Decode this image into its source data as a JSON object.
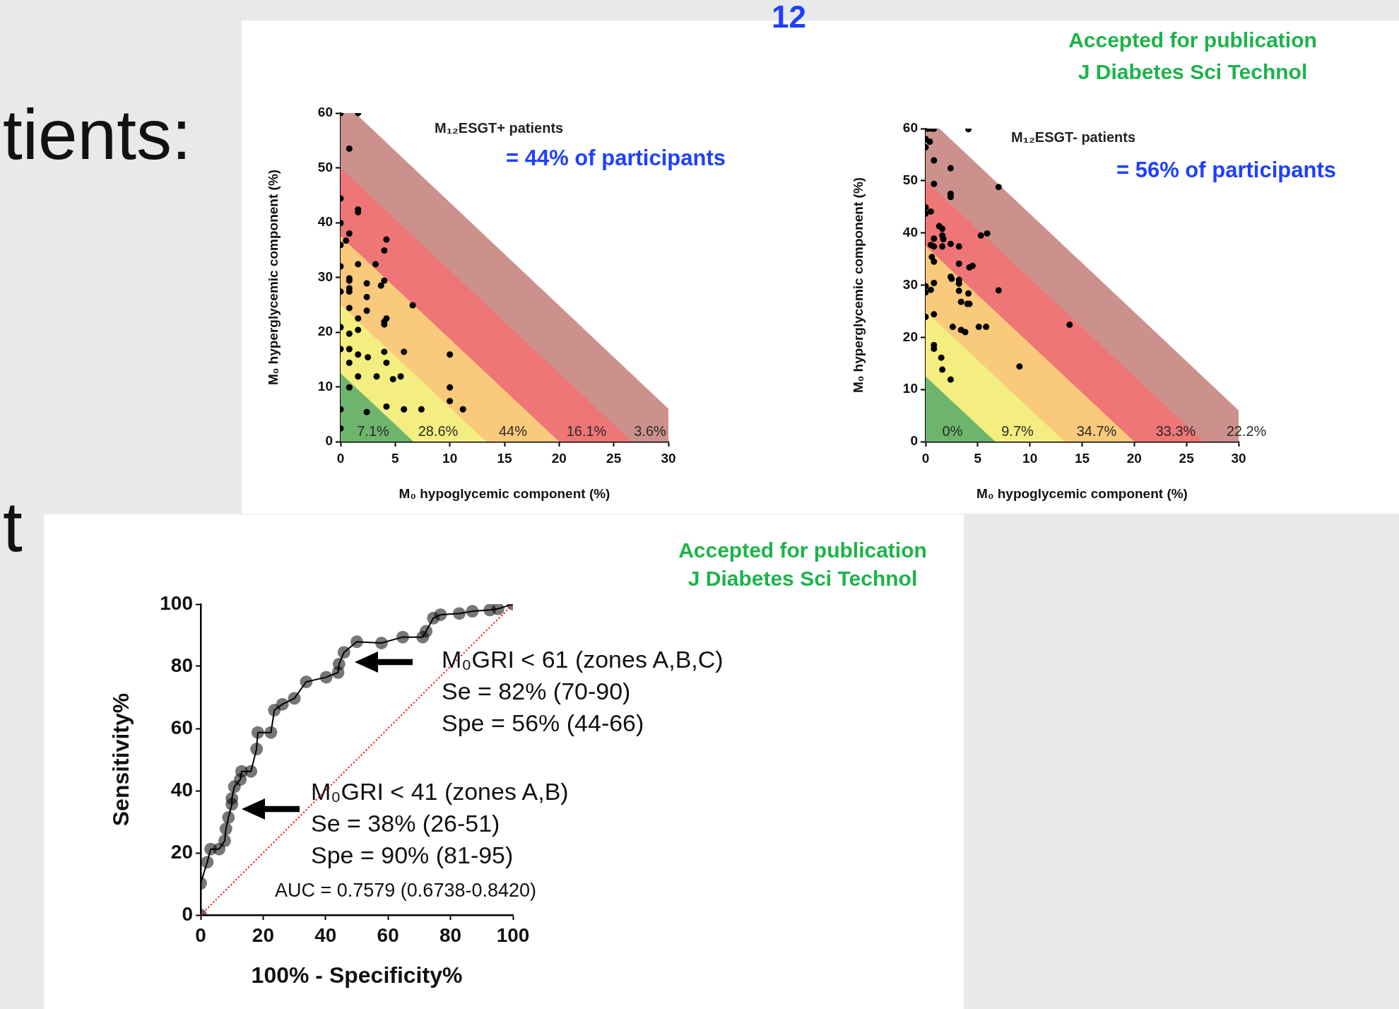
{
  "chart_data": [
    {
      "type": "scatter",
      "title": "M₁₂ESGT+ patients",
      "subtitle": "= 44% of participants",
      "xlabel": "M₀ hypoglycemic component (%)",
      "ylabel": "M₀ hyperglycemic component (%)",
      "xlim": [
        0,
        30
      ],
      "ylim": [
        0,
        60
      ],
      "xticks": [
        0,
        5,
        10,
        15,
        20,
        25,
        30
      ],
      "yticks": [
        0,
        10,
        20,
        30,
        40,
        50,
        60
      ],
      "annotations": [
        "7.1%",
        "28.6%",
        "44%",
        "16.1%",
        "3.6%"
      ],
      "series": [
        {
          "type": "area",
          "color": "#6db56d",
          "x": [
            0,
            6.67,
            30
          ],
          "values": [
            12.5,
            0,
            0
          ]
        },
        {
          "type": "area",
          "color": "#f3ee7f",
          "x": [
            0,
            13.33,
            30
          ],
          "values": [
            25,
            0,
            0
          ]
        },
        {
          "type": "area",
          "color": "#f9c97c",
          "x": [
            0,
            20,
            30
          ],
          "values": [
            37.5,
            0,
            0
          ]
        },
        {
          "type": "area",
          "color": "#ef7676",
          "x": [
            0,
            26.67,
            30
          ],
          "values": [
            50,
            0,
            0
          ]
        },
        {
          "type": "area",
          "color": "#cc918c",
          "x": [
            0,
            1.33,
            30
          ],
          "values": [
            60,
            60,
            6
          ]
        },
        {
          "marker": "circle",
          "color": "#000000",
          "x": [
            0,
            1.6,
            0.8,
            0,
            1.6,
            1.6,
            0,
            0.8,
            0.5,
            4.2,
            0,
            4,
            1.6,
            3.2,
            0,
            0.8,
            0.8,
            2.4,
            4,
            3.7,
            0.8,
            0.8,
            0,
            2.4,
            6.6,
            0.8,
            2.4,
            1.6,
            4.2,
            4,
            4,
            0,
            1.6,
            0.8,
            0,
            0.8,
            1.6,
            2.5,
            4,
            5.8,
            10,
            0.8,
            4.2,
            1.6,
            3.3,
            4.8,
            5.5,
            0.8,
            10,
            10,
            0,
            4.2,
            5.8,
            7.4,
            11.2,
            2.4,
            0
          ],
          "values": [
            60,
            60,
            53.5,
            44.4,
            42.4,
            41.9,
            39.9,
            38,
            36.7,
            36.9,
            35.9,
            34.9,
            32.4,
            32.4,
            32,
            29.8,
            29.4,
            28.9,
            29.4,
            28.5,
            28,
            27.4,
            27.4,
            26.4,
            24.9,
            24.4,
            23.9,
            22.5,
            22.5,
            21.9,
            21.4,
            20.9,
            20.4,
            19.7,
            16.9,
            16.9,
            15.9,
            15.4,
            16.4,
            16.4,
            15.9,
            14.4,
            14.4,
            11.9,
            11.9,
            11.4,
            11.9,
            9.9,
            9.9,
            7.4,
            5.9,
            6.4,
            5.9,
            5.9,
            5.9,
            5.4,
            2.4
          ]
        }
      ]
    },
    {
      "type": "scatter",
      "title": "M₁₂ESGT- patients",
      "subtitle": "= 56% of participants",
      "xlabel": "M₀ hypoglycemic component (%)",
      "ylabel": "M₀ hyperglycemic component (%)",
      "xlim": [
        0,
        30
      ],
      "ylim": [
        0,
        60
      ],
      "xticks": [
        0,
        5,
        10,
        15,
        20,
        25,
        30
      ],
      "yticks": [
        0,
        10,
        20,
        30,
        40,
        50,
        60
      ],
      "annotations": [
        "Accepted for publication",
        "J Diabetes Sci Technol",
        "0%",
        "9.7%",
        "34.7%",
        "33.3%",
        "22.2%"
      ],
      "series": [
        {
          "type": "area",
          "color": "#6db56d",
          "x": [
            0,
            6.67,
            30
          ],
          "values": [
            12.5,
            0,
            0
          ]
        },
        {
          "type": "area",
          "color": "#f3ee7f",
          "x": [
            0,
            13.33,
            30
          ],
          "values": [
            25,
            0,
            0
          ]
        },
        {
          "type": "area",
          "color": "#f9c97c",
          "x": [
            0,
            20,
            30
          ],
          "values": [
            37.5,
            0,
            0
          ]
        },
        {
          "type": "area",
          "color": "#ef7676",
          "x": [
            0,
            26.67,
            30
          ],
          "values": [
            50,
            0,
            0
          ]
        },
        {
          "type": "area",
          "color": "#cc918c",
          "x": [
            0,
            1.33,
            30
          ],
          "values": [
            60,
            60,
            6
          ]
        },
        {
          "marker": "circle",
          "color": "#000000",
          "x": [
            0.2,
            0.6,
            0.8,
            4.1,
            0,
            0.4,
            0,
            0.8,
            2.4,
            0.8,
            7,
            2.4,
            2.4,
            0,
            0.5,
            0,
            1.3,
            1.6,
            5.3,
            5.9,
            0.8,
            1.6,
            1.7,
            1.6,
            0.5,
            0.8,
            2.4,
            3.2,
            0.6,
            0.8,
            3.2,
            4.2,
            4.5,
            2.4,
            2.5,
            3.2,
            3.2,
            0.8,
            0,
            0.5,
            0,
            7,
            3.2,
            4.1,
            3.4,
            4,
            4.2,
            0.8,
            0,
            2.6,
            3.4,
            3.8,
            5.1,
            5.8,
            13.8,
            0.8,
            0.8,
            1.5,
            9,
            1.6,
            2.4
          ],
          "values": [
            60,
            60,
            60,
            59.9,
            58,
            57.5,
            56.4,
            53.9,
            52.4,
            49.4,
            48.8,
            47.5,
            46.9,
            44.9,
            44.1,
            43.7,
            41.3,
            40.8,
            39.5,
            39.9,
            38.9,
            39.5,
            38.8,
            37.4,
            37.7,
            37.4,
            37.9,
            37.4,
            35.4,
            34.5,
            34.1,
            33.4,
            33.7,
            31.6,
            31.2,
            31,
            30.3,
            30.4,
            29.8,
            29.1,
            28.6,
            29,
            28.9,
            28.4,
            26.8,
            26.4,
            26.4,
            24.4,
            23.9,
            22,
            21.4,
            21,
            22,
            22,
            22.4,
            18.5,
            17.8,
            16.1,
            14.4,
            13.8,
            11.9
          ]
        }
      ]
    },
    {
      "type": "line",
      "xlabel": "100% - Specificity%",
      "ylabel": "Sensitivity%",
      "xlim": [
        0,
        100
      ],
      "ylim": [
        0,
        100
      ],
      "xticks": [
        0,
        20,
        40,
        60,
        80,
        100
      ],
      "yticks": [
        0,
        20,
        40,
        60,
        80,
        100
      ],
      "annotations": [
        "Accepted for publication",
        "J Diabetes Sci Technol",
        "M₀GRI < 61 (zones A,B,C)",
        "Se = 82% (70-90)",
        "Spe = 56% (44-66)",
        "M₀GRI < 41 (zones A,B)",
        "Se = 38% (26-51)",
        "Spe = 90% (81-95)",
        "AUC = 0.7579 (0.6738-0.8420)"
      ],
      "series": [
        {
          "type": "line",
          "color": "#ff0000",
          "marker": "none",
          "line_style": "dotted",
          "x": [
            0,
            100
          ],
          "values": [
            0,
            100
          ]
        },
        {
          "color": "#000000",
          "marker": "circle",
          "line_style": "solid",
          "x": [
            0,
            0,
            2.1,
            3.2,
            5.9,
            7.7,
            8.1,
            8.9,
            10,
            10,
            10.8,
            12.7,
            13.1,
            16.1,
            17.9,
            18.3,
            22.5,
            23.6,
            26.2,
            30,
            33.8,
            40.2,
            44,
            44.3,
            45.9,
            50,
            57.9,
            64.7,
            71.1,
            72.2,
            74.5,
            76.8,
            82.8,
            87,
            92.6,
            95.2,
            100
          ],
          "values": [
            0,
            10.2,
            17,
            21.2,
            21.2,
            23.9,
            27.7,
            31.4,
            35.6,
            37.5,
            41.3,
            43.6,
            46.2,
            46.2,
            53.4,
            58.7,
            58.7,
            65.9,
            67.8,
            69.7,
            75,
            76.5,
            78,
            80.7,
            84.5,
            87.9,
            87.5,
            89.4,
            89.4,
            91.3,
            95.5,
            96.6,
            97,
            97.7,
            98.1,
            98.5,
            100
          ]
        }
      ]
    },
    {
      "type": "other",
      "annotations": [
        "12",
        "tients:",
        "t"
      ]
    }
  ]
}
